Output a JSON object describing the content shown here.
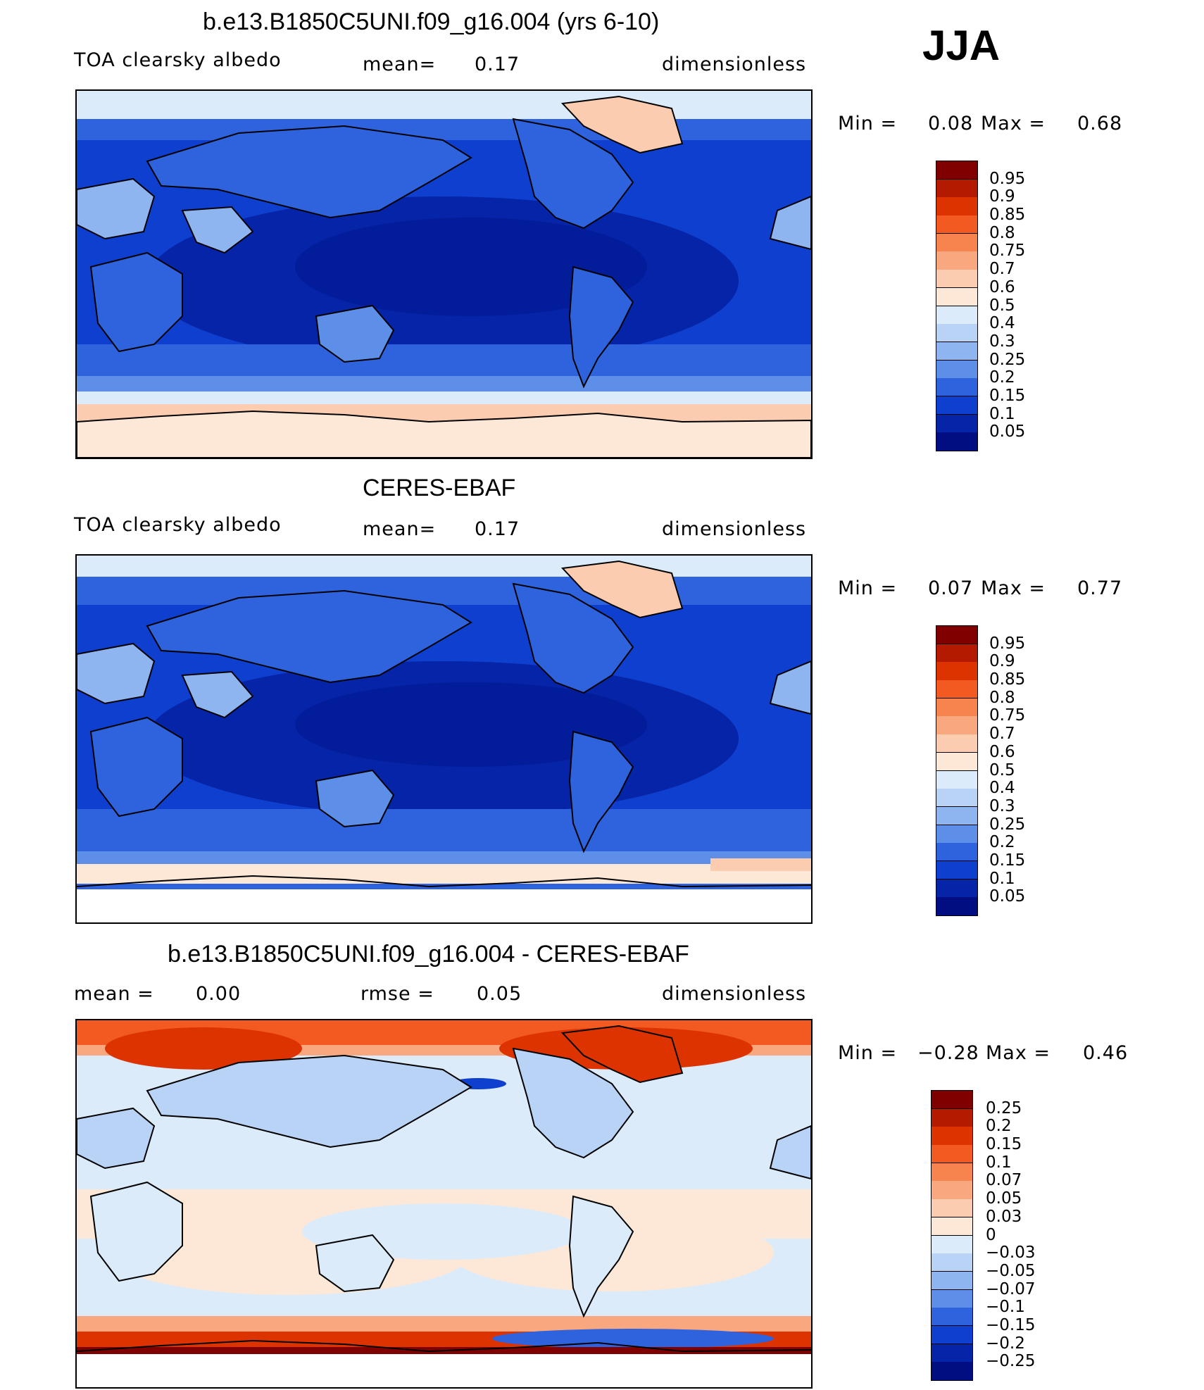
{
  "season": "JJA",
  "panels": [
    {
      "title": "b.e13.B1850C5UNI.f09_g16.004 (yrs 6-10)",
      "var_label": "TOA clearsky albedo",
      "stat1_label": "mean=",
      "stat1_value": "0.17",
      "stat2_label": "",
      "stat2_value": "",
      "units": "dimensionless",
      "min_label": "Min =",
      "min_value": "0.08",
      "max_label": "Max =",
      "max_value": "0.68"
    },
    {
      "title": "CERES-EBAF",
      "var_label": "TOA clearsky albedo",
      "stat1_label": "mean=",
      "stat1_value": "0.17",
      "stat2_label": "",
      "stat2_value": "",
      "units": "dimensionless",
      "min_label": "Min =",
      "min_value": "0.07",
      "max_label": "Max =",
      "max_value": "0.77"
    },
    {
      "title": "b.e13.B1850C5UNI.f09_g16.004 - CERES-EBAF",
      "var_label": "",
      "stat1_label": "mean =",
      "stat1_value": "0.00",
      "stat2_label": "rmse =",
      "stat2_value": "0.05",
      "units": "dimensionless",
      "min_label": "Min =",
      "min_value": "−0.28",
      "max_label": "Max =",
      "max_value": "0.46"
    }
  ],
  "colorbars": {
    "abs": {
      "labels": [
        "0.95",
        "0.9",
        "0.85",
        "0.8",
        "0.75",
        "0.7",
        "0.6",
        "0.5",
        "0.4",
        "0.3",
        "0.25",
        "0.2",
        "0.15",
        "0.1",
        "0.05"
      ],
      "colors": [
        "#800000",
        "#b31a00",
        "#dd3300",
        "#f25a22",
        "#f7844f",
        "#f9a77f",
        "#fbccb0",
        "#fde8d8",
        "#dcebfa",
        "#b9d3f6",
        "#8fb5f0",
        "#5d8ee8",
        "#2f63de",
        "#0f3fcf",
        "#0524a8",
        "#000e82"
      ]
    },
    "diff": {
      "labels": [
        "0.25",
        "0.2",
        "0.15",
        "0.1",
        "0.07",
        "0.05",
        "0.03",
        "0",
        "−0.03",
        "−0.05",
        "−0.07",
        "−0.1",
        "−0.15",
        "−0.2",
        "−0.25"
      ],
      "colors": [
        "#800000",
        "#b31a00",
        "#dd3300",
        "#f25a22",
        "#f7844f",
        "#f9a77f",
        "#fbccb0",
        "#fde8d8",
        "#dcebfa",
        "#b9d3f6",
        "#8fb5f0",
        "#5d8ee8",
        "#2f63de",
        "#0f3fcf",
        "#0524a8",
        "#000e82"
      ]
    }
  }
}
